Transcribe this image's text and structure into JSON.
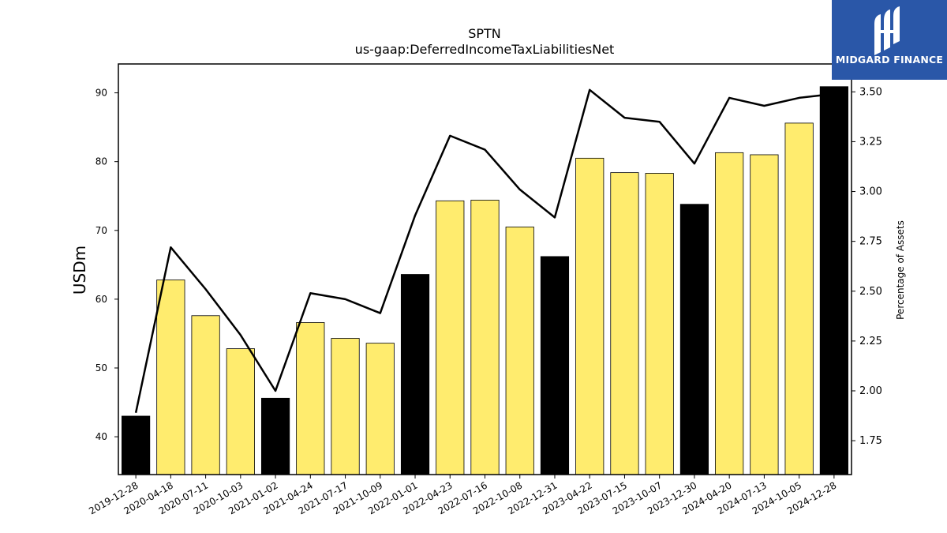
{
  "brand": {
    "name": "MIDGARD FINANCE",
    "bg_color": "#2a57a8",
    "icon": "midgard-logo-icon"
  },
  "chart_data": {
    "type": "bar",
    "title": "SPTN",
    "subtitle": "us-gaap:DeferredIncomeTaxLiabilitiesNet",
    "ylabel": "USDm",
    "ylabel_right": "Percentage of Assets",
    "ylim": [
      34.5,
      94.2
    ],
    "ylim_right": [
      1.58,
      3.64
    ],
    "yticks": [
      40,
      50,
      60,
      70,
      80,
      90
    ],
    "yticks_right": [
      "1.75",
      "2.00",
      "2.25",
      "2.50",
      "2.75",
      "3.00",
      "3.25",
      "3.50"
    ],
    "categories": [
      "2019-12-28",
      "2020-04-18",
      "2020-07-11",
      "2020-10-03",
      "2021-01-02",
      "2021-04-24",
      "2021-07-17",
      "2021-10-09",
      "2022-01-01",
      "2022-04-23",
      "2022-07-16",
      "2022-10-08",
      "2022-12-31",
      "2023-04-22",
      "2023-07-15",
      "2023-10-07",
      "2023-12-30",
      "2024-04-20",
      "2024-07-13",
      "2024-10-05",
      "2024-12-28"
    ],
    "series": [
      {
        "type": "bar",
        "values": [
          43.0,
          62.8,
          57.6,
          52.8,
          45.6,
          56.6,
          54.3,
          53.6,
          63.6,
          74.3,
          74.4,
          70.5,
          66.2,
          80.5,
          78.4,
          78.3,
          73.8,
          81.3,
          81.0,
          85.6,
          90.9
        ],
        "highlight": [
          true,
          false,
          false,
          false,
          true,
          false,
          false,
          false,
          true,
          false,
          false,
          false,
          true,
          false,
          false,
          false,
          true,
          false,
          false,
          false,
          true
        ],
        "color": "#ffec6e",
        "highlight_color": "#000000"
      },
      {
        "type": "line",
        "axis": "right",
        "values": [
          1.89,
          2.72,
          2.51,
          2.28,
          2.0,
          2.49,
          2.46,
          2.39,
          2.88,
          3.28,
          3.21,
          3.01,
          2.87,
          3.51,
          3.37,
          3.35,
          3.14,
          3.47,
          3.43,
          3.47,
          3.49
        ],
        "color": "#000000"
      }
    ],
    "grid": false,
    "legend": "none"
  }
}
